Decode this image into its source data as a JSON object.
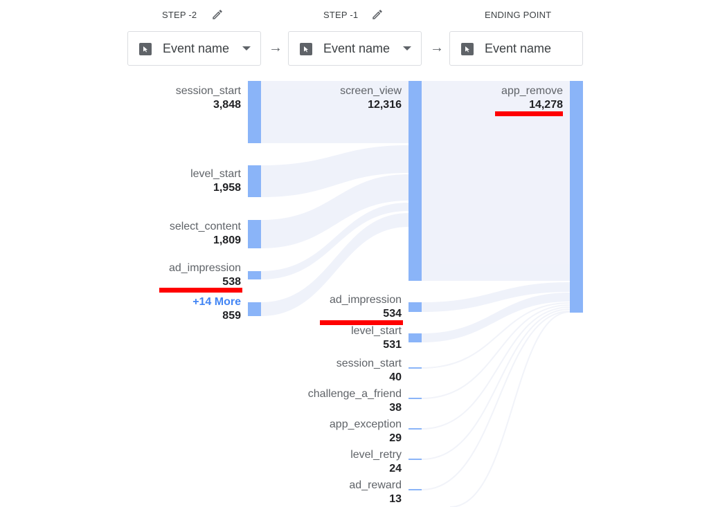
{
  "columns": [
    {
      "header": "STEP -2",
      "selector": "Event name",
      "editable": true,
      "dropdown": true
    },
    {
      "header": "STEP -1",
      "selector": "Event name",
      "editable": true,
      "dropdown": true
    },
    {
      "header": "ENDING POINT",
      "selector": "Event name",
      "editable": false,
      "dropdown": false
    }
  ],
  "step_minus_2": [
    {
      "name": "session_start",
      "value": "3,848"
    },
    {
      "name": "level_start",
      "value": "1,958"
    },
    {
      "name": "select_content",
      "value": "1,809"
    },
    {
      "name": "ad_impression",
      "value": "538"
    },
    {
      "name": "+14 More",
      "value": "859"
    }
  ],
  "step_minus_1": [
    {
      "name": "screen_view",
      "value": "12,316"
    },
    {
      "name": "ad_impression",
      "value": "534"
    },
    {
      "name": "level_start",
      "value": "531"
    },
    {
      "name": "session_start",
      "value": "40"
    },
    {
      "name": "challenge_a_friend",
      "value": "38"
    },
    {
      "name": "app_exception",
      "value": "29"
    },
    {
      "name": "level_retry",
      "value": "24"
    },
    {
      "name": "ad_reward",
      "value": "13"
    }
  ],
  "ending_point": [
    {
      "name": "app_remove",
      "value": "14,278"
    }
  ],
  "colors": {
    "node": "#8ab4f8",
    "flow": "#eef1fa",
    "more_link": "#4285f4",
    "highlight": "#ff0000"
  }
}
